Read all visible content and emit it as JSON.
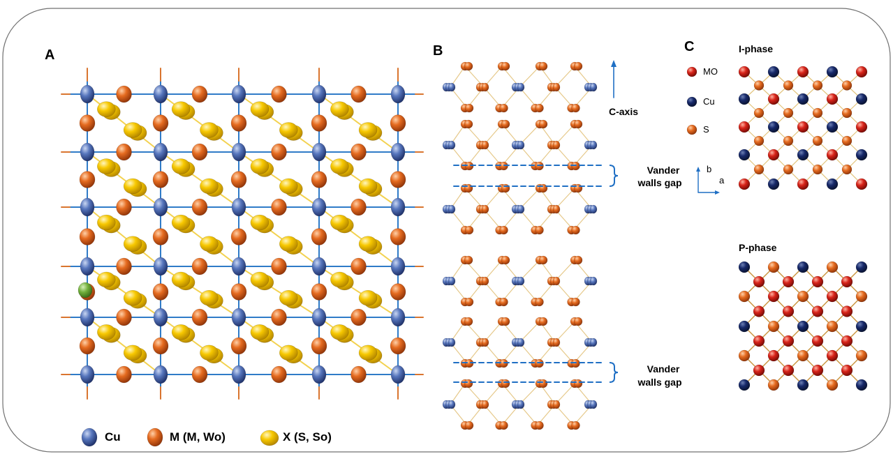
{
  "panels": {
    "a": {
      "letter": "A"
    },
    "b": {
      "letter": "B",
      "c_axis": "C-axis",
      "gap_line1": "Vander",
      "gap_line2": "walls gap"
    },
    "c": {
      "letter": "C",
      "i_phase": "I-phase",
      "p_phase": "P-phase",
      "axis_a": "a",
      "axis_b": "b"
    }
  },
  "legend_a": {
    "cu": "Cu",
    "m": "M (M, Wo)",
    "x": "X (S, So)"
  },
  "legend_c": {
    "mo": "MO",
    "cu": "Cu",
    "s": "S"
  },
  "colors": {
    "cu": "#3e5fa8",
    "m": "#e0671f",
    "x": "#f5c400",
    "green": "#6fae3a",
    "bond": "#2f7bc8",
    "mo": "#d8241a",
    "cu_dark": "#14285c",
    "gap_line": "#1f6fc4"
  }
}
